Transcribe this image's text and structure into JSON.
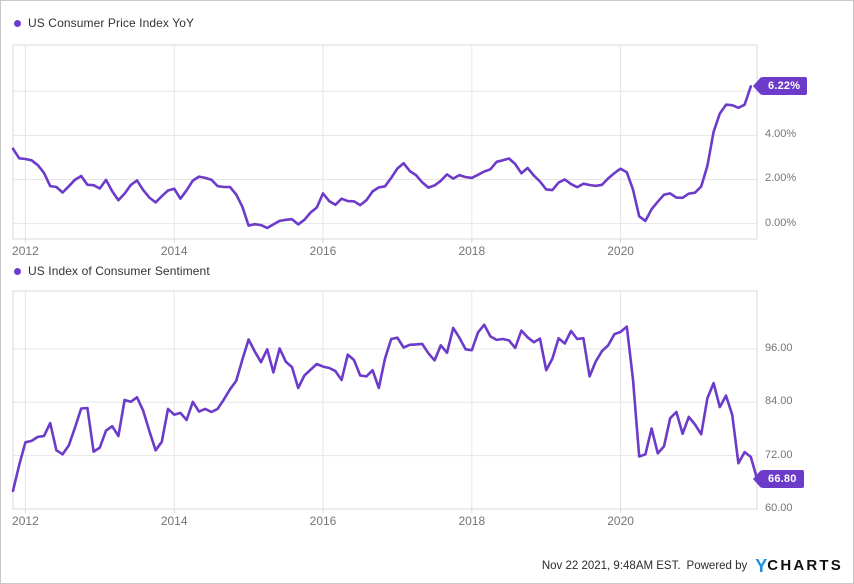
{
  "colors": {
    "series_purple": "#6C3BC9",
    "gridline": "#e6e6e6",
    "plot_border": "#d9d9d9",
    "axis_text": "#757575",
    "legend_text": "#333333",
    "badge_text": "#ffffff",
    "logo_blue": "#1E8FE3",
    "logo_dark": "#101010"
  },
  "footer": {
    "timestamp": "Nov 22 2021, 9:48AM EST.",
    "powered_by": "Powered by",
    "logo_y": "Y",
    "logo_charts": "CHARTS"
  },
  "chart_data": [
    {
      "type": "line",
      "title": "US Consumer Price Index YoY",
      "frequency": "monthly",
      "x_start": "2011-11",
      "x_end": "2021-10",
      "months_span": 120,
      "ylim": [
        -0.7,
        8.1
      ],
      "ygrid": [
        0,
        2,
        4,
        6
      ],
      "yticks": [
        {
          "v": 4,
          "label": "4.00%"
        },
        {
          "v": 2,
          "label": "2.00%"
        },
        {
          "v": 0,
          "label": "0.00%"
        }
      ],
      "xticks": [
        {
          "label": "2012",
          "month": 2
        },
        {
          "label": "2014",
          "month": 26
        },
        {
          "label": "2016",
          "month": 50
        },
        {
          "label": "2018",
          "month": 74
        },
        {
          "label": "2020",
          "month": 98
        }
      ],
      "badge": {
        "value": 6.22,
        "label": "6.22%"
      },
      "legend_position": "top-left",
      "grid": true,
      "values": [
        3.39,
        2.96,
        2.93,
        2.87,
        2.65,
        2.3,
        1.7,
        1.66,
        1.41,
        1.69,
        1.99,
        2.16,
        1.76,
        1.74,
        1.59,
        1.98,
        1.47,
        1.06,
        1.36,
        1.75,
        1.96,
        1.52,
        1.18,
        0.96,
        1.24,
        1.5,
        1.58,
        1.13,
        1.51,
        1.95,
        2.13,
        2.07,
        1.99,
        1.7,
        1.66,
        1.66,
        1.32,
        0.76,
        -0.09,
        -0.03,
        -0.07,
        -0.2,
        -0.04,
        0.12,
        0.17,
        0.2,
        -0.04,
        0.17,
        0.5,
        0.73,
        1.37,
        1.02,
        0.85,
        1.13,
        1.02,
        1.01,
        0.84,
        1.06,
        1.46,
        1.64,
        1.69,
        2.07,
        2.5,
        2.74,
        2.38,
        2.2,
        1.87,
        1.63,
        1.73,
        1.94,
        2.23,
        2.04,
        2.2,
        2.11,
        2.07,
        2.21,
        2.36,
        2.46,
        2.8,
        2.87,
        2.95,
        2.7,
        2.28,
        2.52,
        2.18,
        1.91,
        1.55,
        1.52,
        1.86,
        2.0,
        1.79,
        1.65,
        1.81,
        1.75,
        1.71,
        1.76,
        2.05,
        2.29,
        2.49,
        2.33,
        1.54,
        0.33,
        0.12,
        0.65,
        0.99,
        1.31,
        1.37,
        1.18,
        1.17,
        1.36,
        1.4,
        1.68,
        2.62,
        4.16,
        4.99,
        5.39,
        5.37,
        5.25,
        5.39,
        6.22
      ]
    },
    {
      "type": "line",
      "title": "US Index of Consumer Sentiment",
      "frequency": "monthly",
      "x_start": "2011-11",
      "x_end": "2021-11",
      "months_span": 120,
      "ylim": [
        60,
        109
      ],
      "ygrid": [
        72,
        84,
        96
      ],
      "yticks": [
        {
          "v": 96,
          "label": "96.00"
        },
        {
          "v": 84,
          "label": "84.00"
        },
        {
          "v": 72,
          "label": "72.00"
        },
        {
          "v": 60,
          "label": "60.00"
        }
      ],
      "xticks": [
        {
          "label": "2012",
          "month": 2
        },
        {
          "label": "2014",
          "month": 26
        },
        {
          "label": "2016",
          "month": 50
        },
        {
          "label": "2018",
          "month": 74
        },
        {
          "label": "2020",
          "month": 98
        }
      ],
      "badge": {
        "value": 66.8,
        "label": "66.80"
      },
      "legend_position": "top-left",
      "grid": true,
      "values": [
        64.1,
        69.9,
        75.0,
        75.3,
        76.2,
        76.4,
        79.3,
        73.2,
        72.3,
        74.3,
        78.3,
        82.6,
        82.7,
        72.9,
        73.8,
        77.6,
        78.6,
        76.4,
        84.5,
        84.1,
        85.1,
        82.1,
        77.5,
        73.2,
        75.1,
        82.5,
        81.2,
        81.6,
        80.0,
        84.1,
        81.9,
        82.5,
        81.8,
        82.5,
        84.6,
        86.9,
        88.8,
        93.6,
        98.1,
        95.4,
        93.0,
        95.9,
        90.7,
        96.1,
        93.1,
        91.9,
        87.2,
        90.0,
        91.3,
        92.6,
        92.0,
        91.7,
        91.0,
        89.0,
        94.7,
        93.5,
        90.0,
        89.8,
        91.2,
        87.2,
        93.8,
        98.2,
        98.5,
        96.3,
        96.9,
        97.0,
        97.1,
        95.0,
        93.4,
        96.8,
        95.1,
        100.7,
        98.5,
        95.9,
        95.7,
        99.7,
        101.4,
        98.8,
        98.0,
        98.2,
        97.9,
        96.2,
        100.1,
        98.6,
        97.5,
        98.3,
        91.2,
        93.8,
        98.4,
        97.2,
        100.0,
        98.2,
        98.4,
        89.8,
        93.2,
        95.5,
        96.8,
        99.3,
        99.8,
        101.0,
        89.1,
        71.8,
        72.3,
        78.1,
        72.5,
        74.1,
        80.4,
        81.8,
        76.9,
        80.7,
        79.0,
        76.8,
        84.9,
        88.3,
        82.9,
        85.5,
        81.2,
        70.3,
        72.8,
        71.7,
        66.8
      ]
    }
  ]
}
